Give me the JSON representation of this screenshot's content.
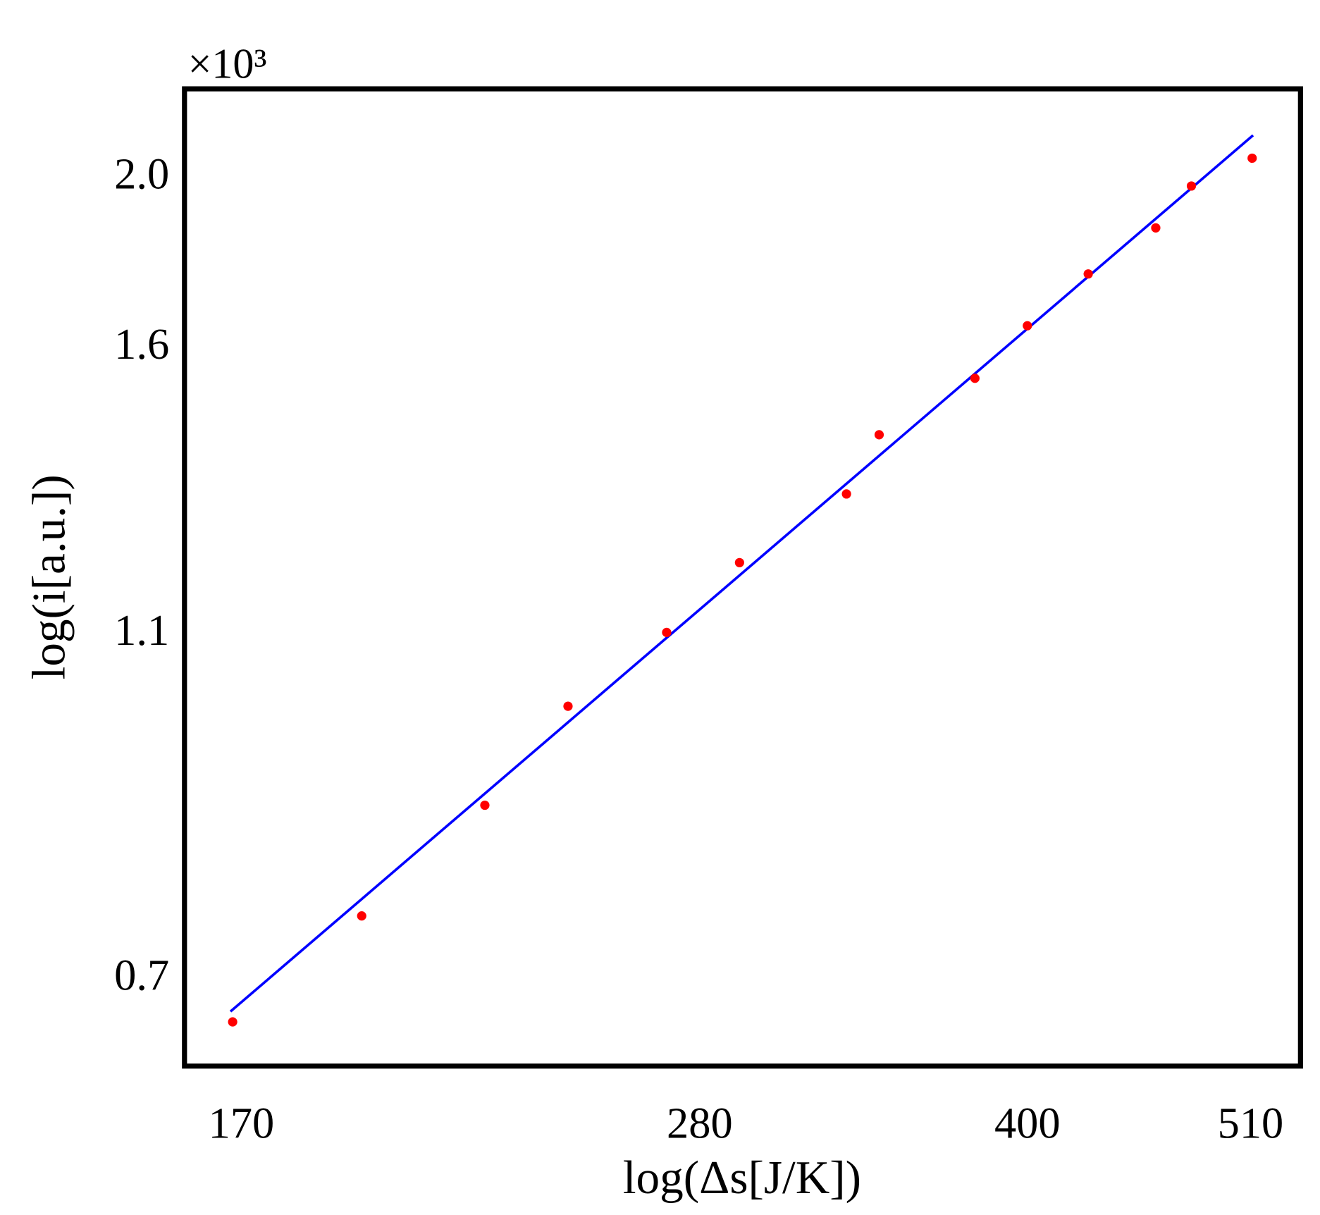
{
  "chart_data": {
    "type": "scatter",
    "y_multiplier": "×10³",
    "xlabel": "log(Δs[J/K])",
    "ylabel": "log(i[a.u.])",
    "xscale": "log",
    "yscale": "log",
    "xlim": [
      159.8,
      538.5
    ],
    "ylim": [
      0.621,
      2.234
    ],
    "xticks": [
      170,
      280,
      400,
      510
    ],
    "yticks": [
      {
        "value": 0.7,
        "label": "0.7"
      },
      {
        "value": 1.1,
        "label": "1.1"
      },
      {
        "value": 1.6,
        "label": "1.6"
      },
      {
        "value": 2.0,
        "label": "2.0"
      }
    ],
    "series": [
      {
        "mode": "markers",
        "color": "#ff0000",
        "x": [
          168.4,
          193.8,
          221.6,
          242.6,
          270.1,
          292.4,
          328.5,
          340.4,
          377.8,
          400,
          427.4,
          460.0,
          478.2,
          510.9
        ],
        "values": [
          0.658,
          0.756,
          0.874,
          0.995,
          1.096,
          1.201,
          1.314,
          1.42,
          1.529,
          1.638,
          1.753,
          1.862,
          1.967,
          2.04
        ]
      },
      {
        "mode": "line",
        "color": "#0000ff",
        "x": [
          168.0,
          511.4
        ],
        "values": [
          0.667,
          2.102
        ]
      }
    ]
  }
}
